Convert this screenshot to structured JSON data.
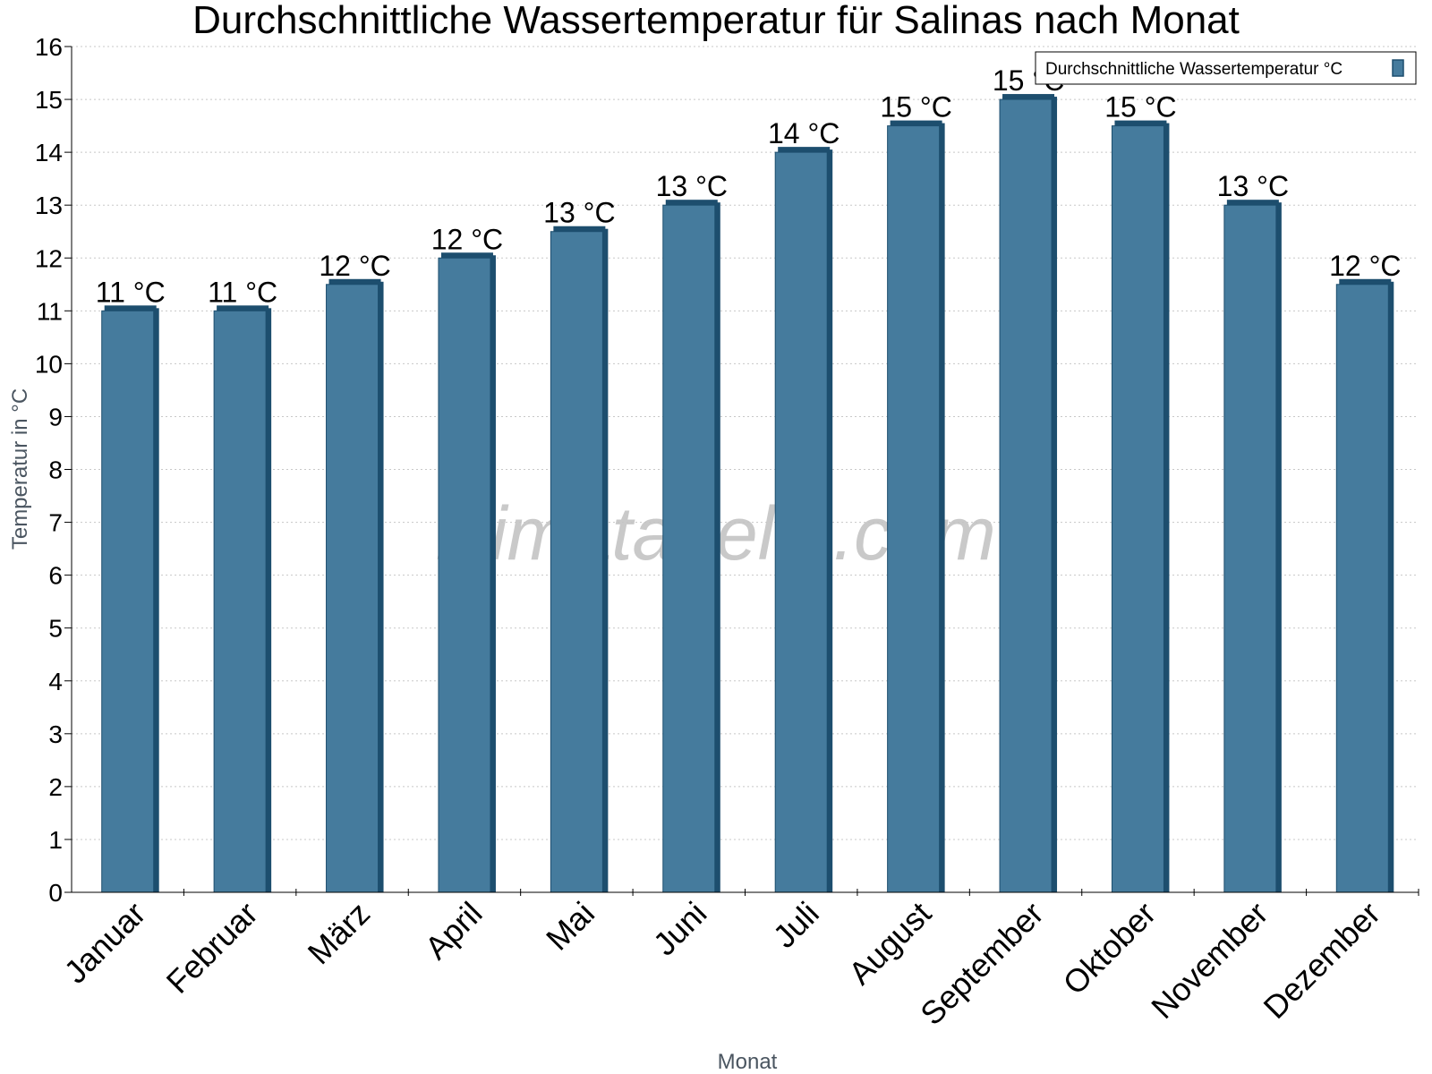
{
  "watermark": "klimatabelle.com",
  "chart_data": {
    "type": "bar",
    "title": "Durchschnittliche Wassertemperatur für Salinas nach Monat",
    "xlabel": "Monat",
    "ylabel": "Temperatur in °C",
    "ylim": [
      0,
      16
    ],
    "yticks": [
      0,
      1,
      2,
      3,
      4,
      5,
      6,
      7,
      8,
      9,
      10,
      11,
      12,
      13,
      14,
      15,
      16
    ],
    "grid": true,
    "legend_position": "top-right",
    "categories": [
      "Januar",
      "Februar",
      "März",
      "April",
      "Mai",
      "Juni",
      "Juli",
      "August",
      "September",
      "Oktober",
      "November",
      "Dezember"
    ],
    "series": [
      {
        "name": "Durchschnittliche Wassertemperatur °C",
        "color": "#457b9d",
        "edge_color": "#1d4e6e",
        "values": [
          11,
          11,
          11.5,
          12,
          12.5,
          13,
          14,
          14.5,
          15,
          14.5,
          13,
          11.5
        ],
        "labels": [
          "11 °C",
          "11 °C",
          "12 °C",
          "12 °C",
          "13 °C",
          "13 °C",
          "14 °C",
          "15 °C",
          "15 °C",
          "15 °C",
          "13 °C",
          "12 °C"
        ]
      }
    ]
  }
}
